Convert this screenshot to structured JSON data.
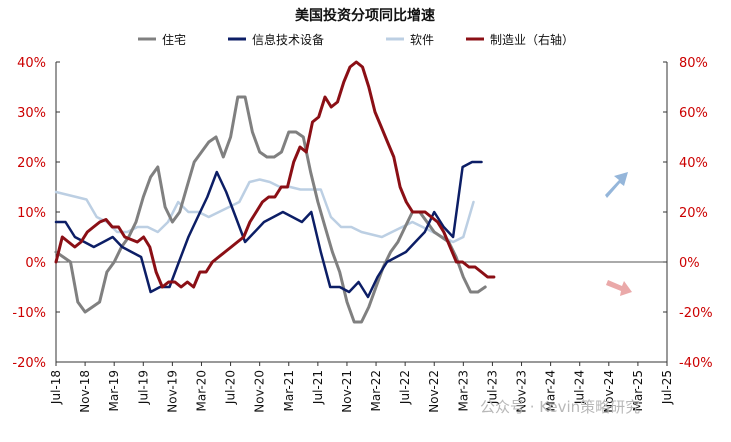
{
  "chart_data": {
    "type": "line",
    "title": "美国投资分项同比增速",
    "x_tick_labels": [
      "Jul-18",
      "Nov-18",
      "Mar-19",
      "Jul-19",
      "Nov-19",
      "Mar-20",
      "Jul-20",
      "Nov-20",
      "Mar-21",
      "Jul-21",
      "Nov-21",
      "Mar-22",
      "Jul-22",
      "Nov-22",
      "Mar-23",
      "Jul-23",
      "Nov-23",
      "Mar-24",
      "Jul-24",
      "Nov-24",
      "Mar-25",
      "Jul-25"
    ],
    "x_start": "2018-07",
    "y_left": {
      "min": -20,
      "max": 40,
      "step": 10,
      "unit": "%"
    },
    "y_right": {
      "min": -40,
      "max": 80,
      "step": 20,
      "unit": "%"
    },
    "series": [
      {
        "name": "住宅",
        "axis": "left",
        "color": "#808080",
        "stroke_width": 3,
        "values": [
          2,
          1,
          0,
          -8,
          -10,
          -9,
          -8,
          -2,
          0,
          3,
          5,
          8,
          13,
          17,
          19,
          11,
          8,
          10,
          15,
          20,
          22,
          24,
          25,
          21,
          25,
          33,
          33,
          26,
          22,
          21,
          21,
          22,
          26,
          26,
          25,
          18,
          12,
          7,
          2,
          -2,
          -8,
          -12,
          -12,
          -9,
          -5,
          -1,
          2,
          4,
          7,
          10,
          10,
          8,
          6,
          5,
          4,
          1,
          -3,
          -6,
          -6,
          -5
        ],
        "first_index": 0
      },
      {
        "name": "信息技术设备",
        "axis": "left",
        "color": "#0c1e66",
        "stroke_width": 2.5,
        "values": [
          8,
          8,
          5,
          4,
          3,
          4,
          5,
          3,
          2,
          1,
          -6,
          -5,
          -5,
          0,
          5,
          9,
          13,
          18,
          14,
          9,
          4,
          6,
          8,
          9,
          10,
          9,
          8,
          10,
          2,
          -5,
          -5,
          -6,
          -4,
          -7,
          -3,
          0,
          1,
          2,
          4,
          6,
          10,
          7,
          5,
          19,
          20,
          20
        ],
        "first_index": 0,
        "step": 1.3
      },
      {
        "name": "软件",
        "axis": "left",
        "color": "#bccfe3",
        "stroke_width": 2.5,
        "values": [
          14,
          13.5,
          13,
          12.5,
          9,
          8,
          6,
          6,
          7,
          7,
          6,
          8,
          12,
          10,
          10,
          9,
          10,
          11,
          12,
          16,
          16.5,
          16,
          15,
          15,
          14.5,
          14.5,
          14.5,
          9,
          7,
          7,
          6,
          5.5,
          5,
          6,
          7,
          8,
          7,
          6,
          5,
          4,
          5,
          12
        ],
        "first_index": 0,
        "step": 1.4
      },
      {
        "name": "制造业（右轴）",
        "axis": "right",
        "color": "#8b0f15",
        "stroke_width": 3,
        "values": [
          0,
          10,
          8,
          6,
          8,
          12,
          14,
          16,
          17,
          14,
          14,
          10,
          9,
          8,
          10,
          6,
          -4,
          -10,
          -8,
          -8,
          -10,
          -8,
          -10,
          -4,
          -4,
          0,
          2,
          4,
          6,
          8,
          10,
          16,
          20,
          24,
          26,
          26,
          30,
          30,
          40,
          46,
          44,
          56,
          58,
          66,
          62,
          64,
          72,
          78,
          80,
          78,
          70,
          60,
          54,
          48,
          42,
          30,
          24,
          20,
          20,
          20,
          18,
          16,
          12,
          6,
          0,
          0,
          -2,
          -2,
          -4,
          -6,
          -6
        ],
        "first_index": 0,
        "step": 0.86
      }
    ],
    "legend": [
      {
        "name": "住宅",
        "color": "#808080"
      },
      {
        "name": "信息技术设备",
        "color": "#0c1e66"
      },
      {
        "name": "软件",
        "color": "#bccfe3"
      },
      {
        "name": "制造业（右轴）",
        "color": "#8b0f15"
      }
    ],
    "legend_position": "top",
    "grid": false
  },
  "watermark": "公众号 · Kevin策略研究"
}
